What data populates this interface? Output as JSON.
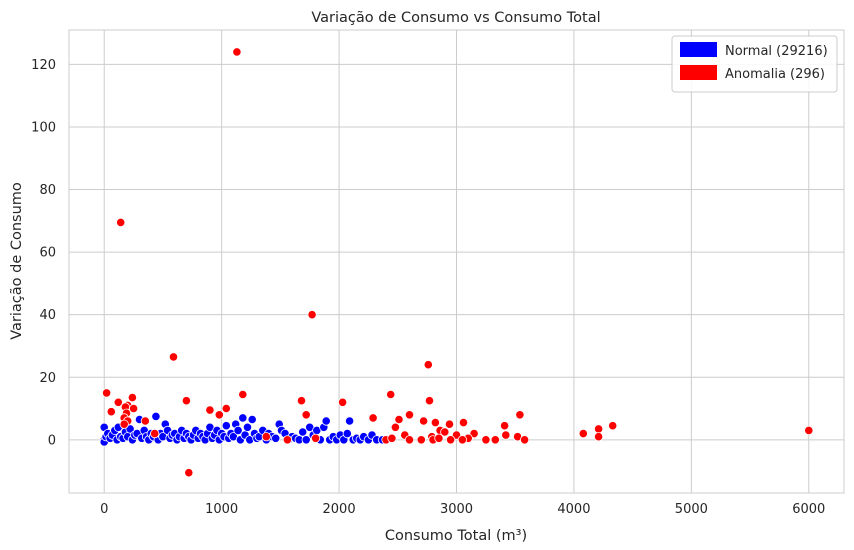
{
  "chart_data": {
    "type": "scatter",
    "title": "Variação de Consumo vs Consumo Total",
    "xlabel": "Consumo Total (m³)",
    "ylabel": "Variação de Consumo",
    "xlim": [
      -300,
      6300
    ],
    "ylim": [
      -17,
      131
    ],
    "x_ticks": [
      0,
      1000,
      2000,
      3000,
      4000,
      5000,
      6000
    ],
    "y_ticks": [
      0,
      20,
      40,
      60,
      80,
      100,
      120
    ],
    "grid": true,
    "legend_position": "top-right",
    "series": [
      {
        "name": "Normal (29216)",
        "color": "#0000ff",
        "points": [
          [
            0,
            0
          ],
          [
            0,
            4
          ],
          [
            0,
            -0.7
          ],
          [
            15,
            1
          ],
          [
            30,
            2
          ],
          [
            50,
            0.5
          ],
          [
            70,
            1.5
          ],
          [
            90,
            3
          ],
          [
            110,
            0
          ],
          [
            120,
            4
          ],
          [
            140,
            1
          ],
          [
            160,
            0.5
          ],
          [
            180,
            2.5
          ],
          [
            200,
            1
          ],
          [
            220,
            3.5
          ],
          [
            240,
            0
          ],
          [
            260,
            1.5
          ],
          [
            280,
            2
          ],
          [
            300,
            6.5
          ],
          [
            320,
            0.5
          ],
          [
            340,
            3
          ],
          [
            360,
            1
          ],
          [
            380,
            0
          ],
          [
            400,
            2
          ],
          [
            420,
            1
          ],
          [
            440,
            7.5
          ],
          [
            460,
            0
          ],
          [
            480,
            2
          ],
          [
            500,
            1
          ],
          [
            520,
            5
          ],
          [
            540,
            3
          ],
          [
            560,
            0.5
          ],
          [
            580,
            1.5
          ],
          [
            600,
            2
          ],
          [
            620,
            0
          ],
          [
            640,
            1
          ],
          [
            660,
            3
          ],
          [
            680,
            0.5
          ],
          [
            700,
            2
          ],
          [
            720,
            1
          ],
          [
            740,
            0
          ],
          [
            760,
            1.5
          ],
          [
            780,
            3
          ],
          [
            800,
            0.5
          ],
          [
            820,
            2
          ],
          [
            840,
            1
          ],
          [
            860,
            0
          ],
          [
            880,
            2
          ],
          [
            900,
            4
          ],
          [
            920,
            0.5
          ],
          [
            940,
            1.5
          ],
          [
            960,
            3
          ],
          [
            980,
            0
          ],
          [
            1000,
            2
          ],
          [
            1020,
            1
          ],
          [
            1040,
            4.5
          ],
          [
            1060,
            0.5
          ],
          [
            1080,
            2
          ],
          [
            1100,
            1
          ],
          [
            1120,
            5
          ],
          [
            1140,
            3
          ],
          [
            1160,
            0
          ],
          [
            1180,
            7
          ],
          [
            1200,
            1.5
          ],
          [
            1220,
            4
          ],
          [
            1240,
            0
          ],
          [
            1260,
            6.5
          ],
          [
            1280,
            2
          ],
          [
            1300,
            0.5
          ],
          [
            1320,
            1
          ],
          [
            1350,
            3
          ],
          [
            1380,
            0
          ],
          [
            1400,
            2
          ],
          [
            1430,
            1
          ],
          [
            1460,
            0.5
          ],
          [
            1490,
            5
          ],
          [
            1510,
            3
          ],
          [
            1540,
            2
          ],
          [
            1570,
            0
          ],
          [
            1600,
            1
          ],
          [
            1630,
            0.5
          ],
          [
            1660,
            0
          ],
          [
            1690,
            2.5
          ],
          [
            1720,
            0
          ],
          [
            1750,
            4
          ],
          [
            1780,
            1.5
          ],
          [
            1810,
            3
          ],
          [
            1840,
            0
          ],
          [
            1870,
            4
          ],
          [
            1890,
            6
          ],
          [
            1920,
            0
          ],
          [
            1950,
            1
          ],
          [
            1980,
            0
          ],
          [
            2010,
            1.5
          ],
          [
            2040,
            0
          ],
          [
            2070,
            2
          ],
          [
            2090,
            6
          ],
          [
            2120,
            0
          ],
          [
            2150,
            0.5
          ],
          [
            2180,
            0
          ],
          [
            2210,
            1
          ],
          [
            2250,
            0
          ],
          [
            2280,
            1.5
          ],
          [
            2320,
            0
          ],
          [
            2370,
            0
          ]
        ]
      },
      {
        "name": "Anomalia (296)",
        "color": "#ff0000",
        "points": [
          [
            1130,
            124
          ],
          [
            140,
            69.5
          ],
          [
            1770,
            40
          ],
          [
            590,
            26.5
          ],
          [
            2760,
            24
          ],
          [
            20,
            15
          ],
          [
            1180,
            14.5
          ],
          [
            2440,
            14.5
          ],
          [
            240,
            13.5
          ],
          [
            700,
            12.5
          ],
          [
            1680,
            12.5
          ],
          [
            2770,
            12.5
          ],
          [
            120,
            12
          ],
          [
            2030,
            12
          ],
          [
            200,
            11
          ],
          [
            180,
            10.5
          ],
          [
            250,
            10
          ],
          [
            1040,
            10
          ],
          [
            900,
            9.5
          ],
          [
            60,
            9
          ],
          [
            190,
            8.5
          ],
          [
            980,
            8
          ],
          [
            1720,
            8
          ],
          [
            2600,
            8
          ],
          [
            3540,
            8
          ],
          [
            170,
            7
          ],
          [
            200,
            6
          ],
          [
            350,
            6
          ],
          [
            2290,
            7
          ],
          [
            2510,
            6.5
          ],
          [
            3060,
            5.5
          ],
          [
            2720,
            6
          ],
          [
            2820,
            5.5
          ],
          [
            2940,
            5
          ],
          [
            4330,
            4.5
          ],
          [
            3410,
            4.5
          ],
          [
            170,
            5
          ],
          [
            2480,
            4
          ],
          [
            4210,
            3.5
          ],
          [
            6000,
            3
          ],
          [
            2860,
            3
          ],
          [
            2900,
            2.5
          ],
          [
            3150,
            2
          ],
          [
            430,
            2
          ],
          [
            4080,
            2
          ],
          [
            3420,
            1.5
          ],
          [
            3520,
            1
          ],
          [
            2560,
            1.5
          ],
          [
            2790,
            1
          ],
          [
            3000,
            1.5
          ],
          [
            3100,
            0.5
          ],
          [
            2400,
            0
          ],
          [
            2450,
            0.5
          ],
          [
            2600,
            0
          ],
          [
            2700,
            0
          ],
          [
            2800,
            0
          ],
          [
            2850,
            0.5
          ],
          [
            2950,
            0
          ],
          [
            3050,
            0
          ],
          [
            3250,
            0
          ],
          [
            3330,
            0
          ],
          [
            3580,
            0
          ],
          [
            1560,
            0
          ],
          [
            1800,
            0.5
          ],
          [
            1380,
            1
          ],
          [
            4210,
            1
          ],
          [
            720,
            -10.5
          ]
        ]
      }
    ]
  }
}
